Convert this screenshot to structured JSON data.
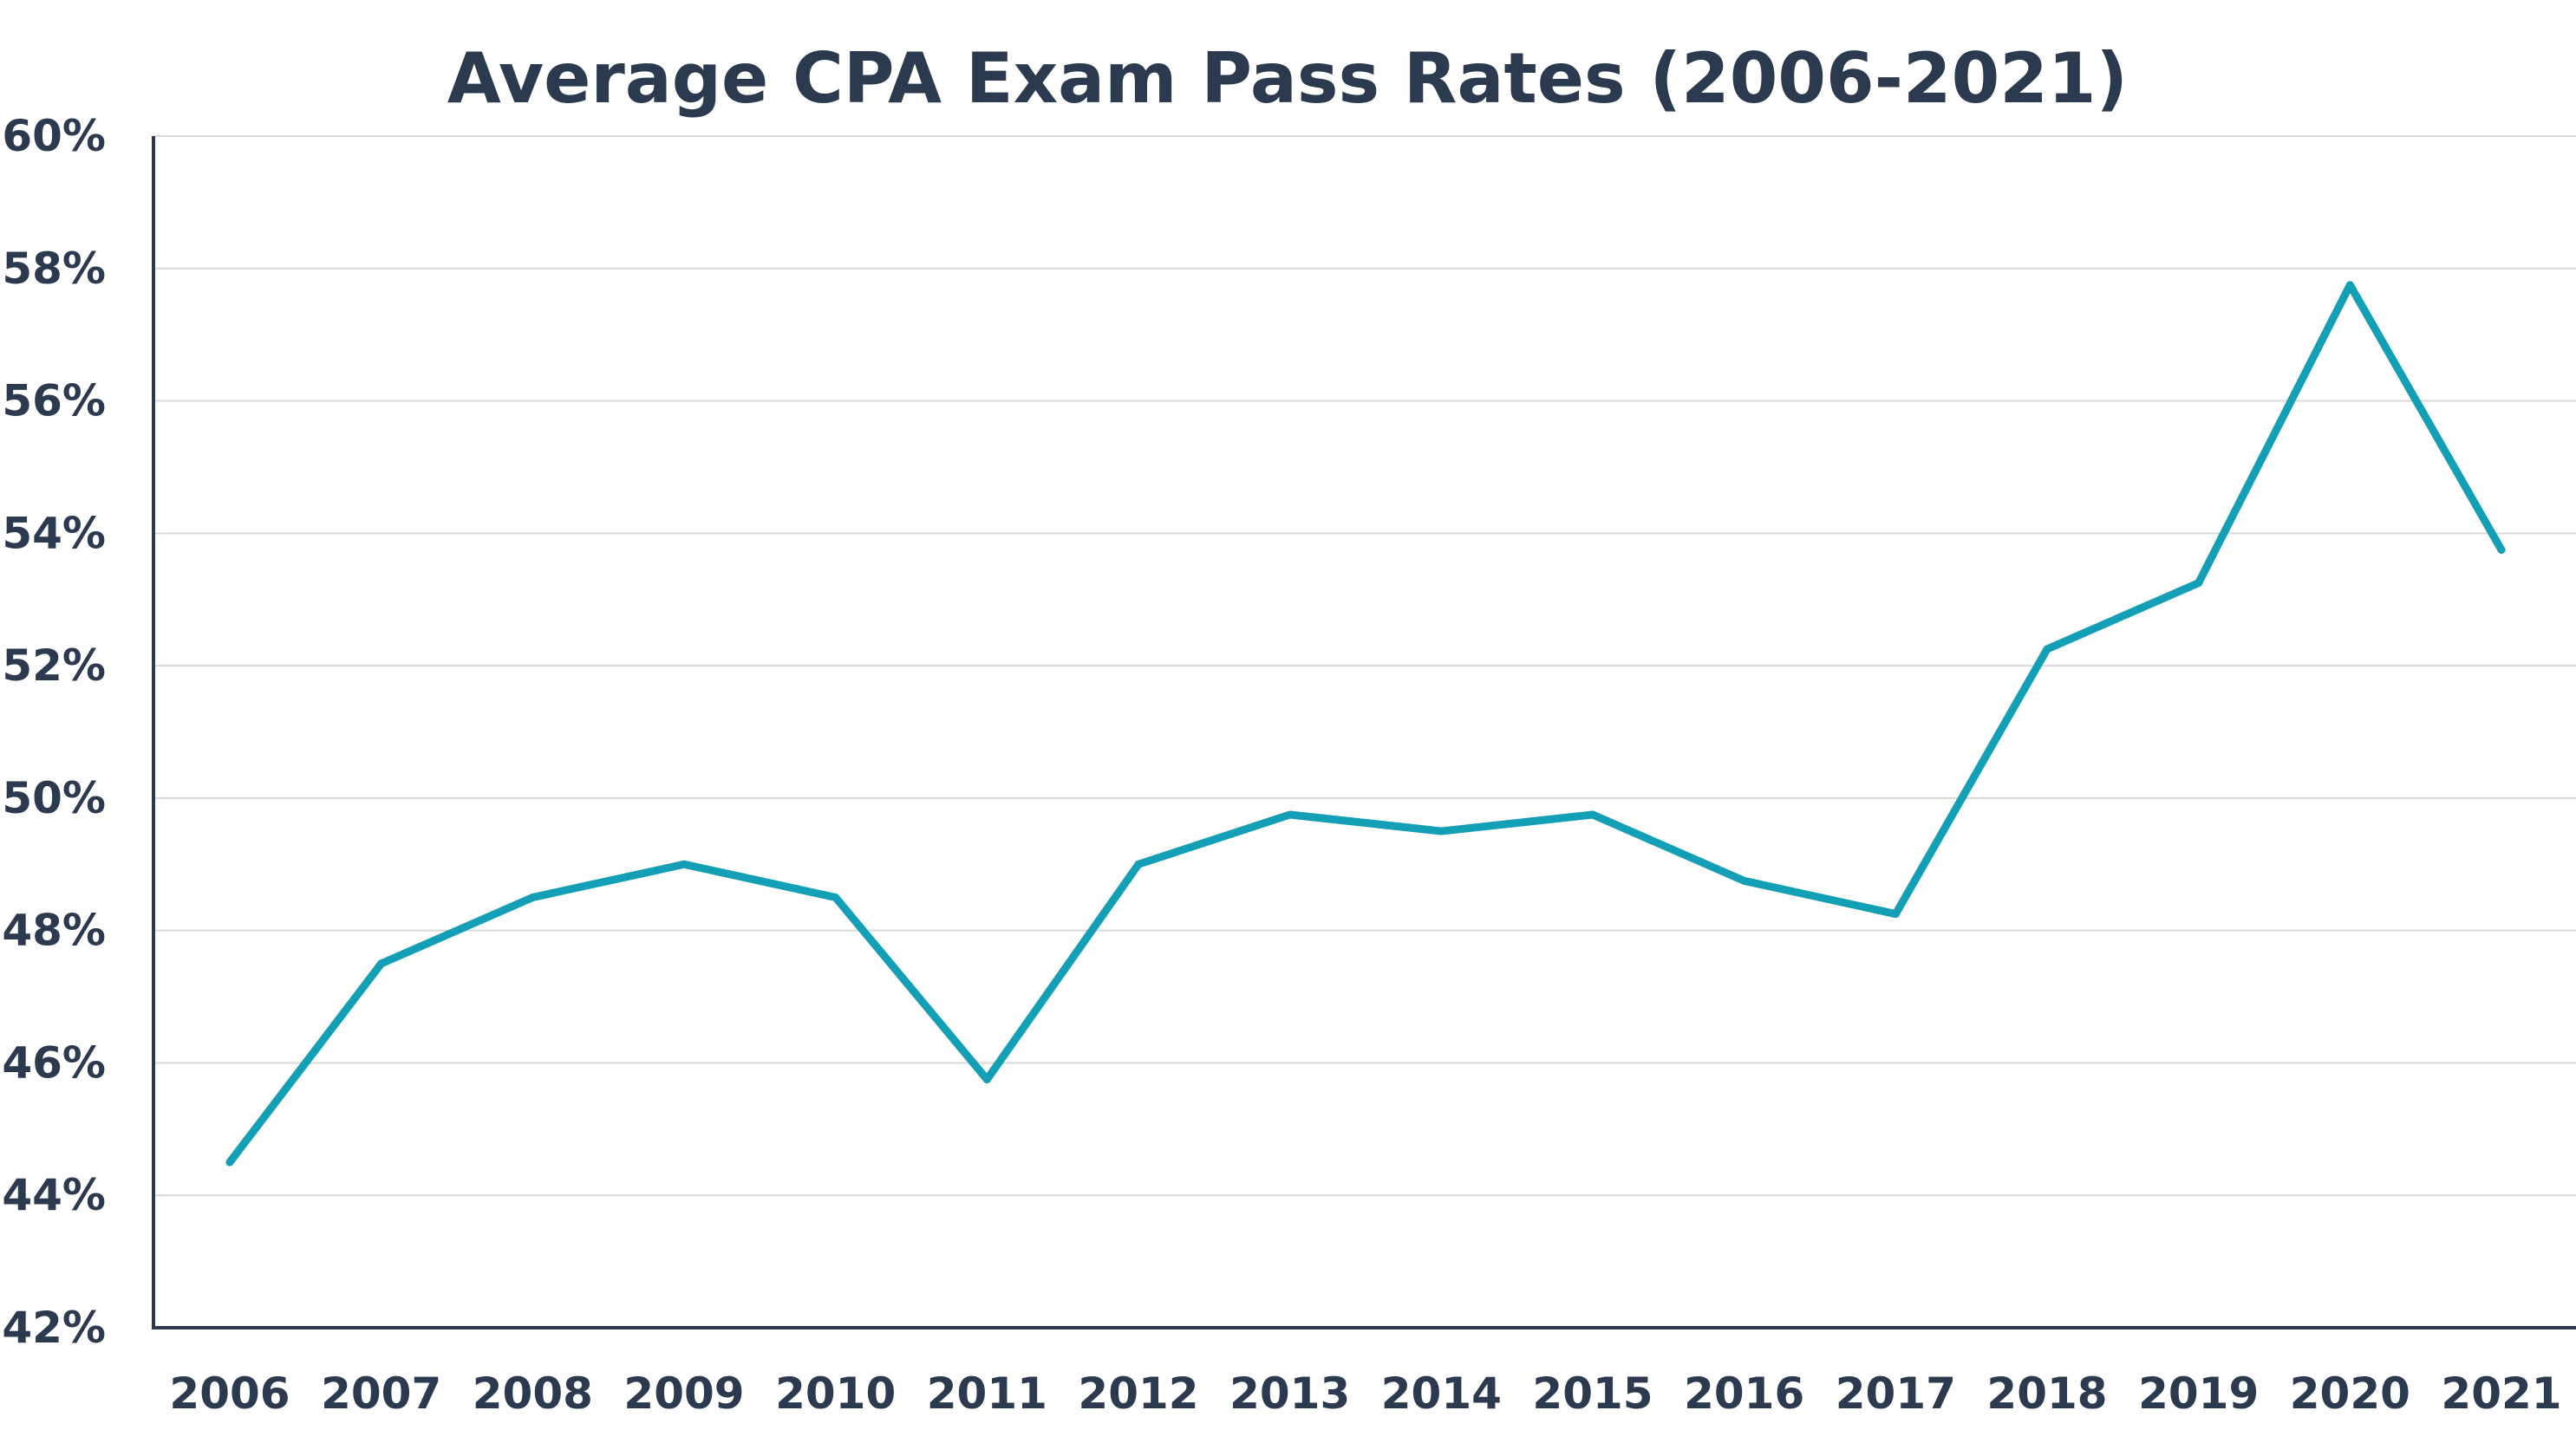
{
  "chart_data": {
    "type": "line",
    "title": "Average CPA Exam Pass Rates (2006-2021)",
    "xlabel": "",
    "ylabel": "",
    "ylim": [
      42,
      60
    ],
    "yticks": [
      42,
      44,
      46,
      48,
      50,
      52,
      54,
      56,
      58,
      60
    ],
    "ytick_labels": [
      "42%",
      "44%",
      "46%",
      "48%",
      "50%",
      "52%",
      "54%",
      "56%",
      "58%",
      "60%"
    ],
    "categories": [
      "2006",
      "2007",
      "2008",
      "2009",
      "2010",
      "2011",
      "2012",
      "2013",
      "2014",
      "2015",
      "2016",
      "2017",
      "2018",
      "2019",
      "2020",
      "2021"
    ],
    "series": [
      {
        "values": [
          44.5,
          47.5,
          48.5,
          49.0,
          48.5,
          45.75,
          49.0,
          49.75,
          49.5,
          49.75,
          48.75,
          48.25,
          52.25,
          53.25,
          57.75,
          53.75
        ],
        "color": "#139fb5"
      }
    ],
    "grid": true,
    "legend": "none",
    "colors": {
      "text": "#2b3a4e",
      "grid": "#d9d9d9",
      "axis": "#2b3a4e",
      "line": "#139fb5"
    }
  }
}
